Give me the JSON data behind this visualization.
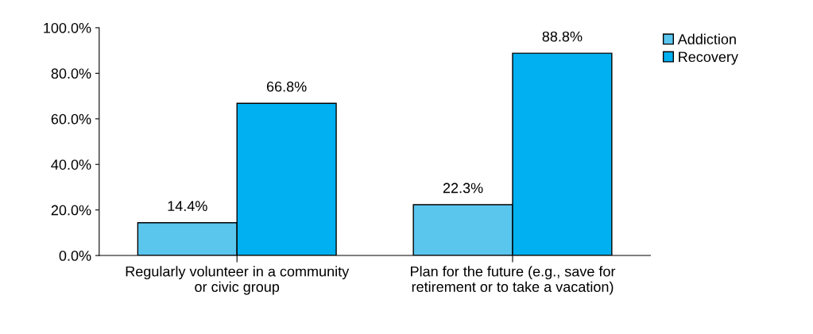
{
  "chart_data": {
    "type": "bar",
    "categories": [
      "Regularly volunteer in a community\nor civic group",
      "Plan for the future (e.g., save for\nretirement or to take a vacation)"
    ],
    "series": [
      {
        "name": "Addiction",
        "color": "#5ac6ee",
        "values": [
          14.4,
          22.3
        ],
        "value_labels": [
          "14.4%",
          "22.3%"
        ]
      },
      {
        "name": "Recovery",
        "color": "#00b0f0",
        "values": [
          66.8,
          88.8
        ],
        "value_labels": [
          "66.8%",
          "88.8%"
        ]
      }
    ],
    "ylim": [
      0,
      100
    ],
    "yticks": [
      {
        "value": 0,
        "label": "0.0%"
      },
      {
        "value": 20,
        "label": "20.0%"
      },
      {
        "value": 40,
        "label": "40.0%"
      },
      {
        "value": 60,
        "label": "60.0%"
      },
      {
        "value": 80,
        "label": "80.0%"
      },
      {
        "value": 100,
        "label": "100.0%"
      }
    ],
    "grid": false,
    "legend": "top right"
  }
}
